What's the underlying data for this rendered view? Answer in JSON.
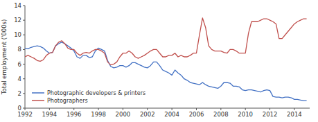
{
  "chart_data": {
    "type": "line",
    "ylabel": "Total employment ('000s)",
    "x": [
      1992.0,
      1992.25,
      1992.5,
      1992.75,
      1993.0,
      1993.25,
      1993.5,
      1993.75,
      1994.0,
      1994.25,
      1994.5,
      1994.75,
      1995.0,
      1995.25,
      1995.5,
      1995.75,
      1996.0,
      1996.25,
      1996.5,
      1996.75,
      1997.0,
      1997.25,
      1997.5,
      1997.75,
      1998.0,
      1998.25,
      1998.5,
      1998.75,
      1999.0,
      1999.25,
      1999.5,
      1999.75,
      2000.0,
      2000.25,
      2000.5,
      2000.75,
      2001.0,
      2001.25,
      2001.5,
      2001.75,
      2002.0,
      2002.25,
      2002.5,
      2002.75,
      2003.0,
      2003.25,
      2003.5,
      2003.75,
      2004.0,
      2004.25,
      2004.5,
      2004.75,
      2005.0,
      2005.25,
      2005.5,
      2005.75,
      2006.0,
      2006.25,
      2006.5,
      2006.75,
      2007.0,
      2007.25,
      2007.5,
      2007.75,
      2008.0,
      2008.25,
      2008.5,
      2008.75,
      2009.0,
      2009.25,
      2009.5,
      2009.75,
      2010.0,
      2010.25,
      2010.5,
      2010.75,
      2011.0,
      2011.25,
      2011.5,
      2011.75,
      2012.0,
      2012.25,
      2012.5,
      2012.75,
      2013.0,
      2013.25,
      2013.5,
      2013.75,
      2014.0,
      2014.25,
      2014.5,
      2014.75,
      2015.0
    ],
    "series": [
      {
        "name": "Photographic developers & printers",
        "color": "#4472C4",
        "values": [
          8.2,
          8.1,
          8.3,
          8.4,
          8.5,
          8.4,
          8.2,
          7.8,
          7.5,
          7.6,
          8.5,
          8.8,
          9.0,
          8.8,
          8.5,
          8.2,
          7.8,
          7.0,
          6.8,
          7.2,
          7.2,
          6.9,
          7.0,
          7.8,
          8.2,
          8.0,
          7.8,
          6.5,
          5.7,
          5.5,
          5.6,
          5.8,
          5.8,
          5.6,
          5.8,
          6.2,
          6.2,
          6.0,
          5.8,
          5.6,
          5.5,
          5.8,
          6.3,
          6.3,
          5.8,
          5.2,
          5.0,
          4.8,
          4.5,
          5.2,
          4.8,
          4.5,
          4.0,
          3.8,
          3.5,
          3.4,
          3.3,
          3.2,
          3.5,
          3.2,
          3.0,
          2.9,
          2.8,
          2.7,
          3.0,
          3.5,
          3.5,
          3.4,
          3.0,
          3.0,
          2.9,
          2.5,
          2.4,
          2.5,
          2.5,
          2.4,
          2.3,
          2.2,
          2.4,
          2.5,
          2.4,
          1.6,
          1.5,
          1.5,
          1.4,
          1.5,
          1.5,
          1.4,
          1.2,
          1.2,
          1.1,
          1.0,
          1.0
        ]
      },
      {
        "name": "Photographers",
        "color": "#C0504D",
        "values": [
          7.0,
          7.2,
          7.0,
          6.8,
          6.5,
          6.4,
          6.6,
          7.2,
          7.5,
          7.6,
          8.5,
          9.0,
          9.2,
          8.8,
          8.2,
          8.0,
          8.0,
          7.5,
          7.2,
          7.5,
          7.6,
          7.5,
          7.8,
          8.0,
          8.0,
          7.8,
          7.5,
          6.3,
          5.9,
          6.0,
          6.3,
          7.0,
          7.5,
          7.5,
          7.8,
          7.5,
          7.0,
          6.8,
          7.0,
          7.2,
          7.5,
          7.8,
          8.0,
          8.0,
          7.5,
          7.0,
          7.0,
          7.2,
          7.2,
          7.5,
          7.0,
          7.2,
          7.0,
          7.0,
          7.2,
          7.5,
          7.5,
          10.0,
          12.3,
          11.0,
          8.5,
          8.0,
          7.8,
          7.8,
          7.8,
          7.6,
          7.5,
          8.0,
          8.0,
          7.8,
          7.5,
          7.5,
          7.5,
          10.2,
          11.8,
          11.8,
          11.8,
          12.0,
          12.2,
          12.2,
          12.0,
          11.8,
          11.5,
          9.5,
          9.5,
          10.0,
          10.5,
          11.0,
          11.5,
          11.8,
          12.0,
          12.2,
          12.2
        ]
      }
    ],
    "xlim": [
      1992,
      2015.25
    ],
    "ylim": [
      0,
      14
    ],
    "xticks": [
      1992,
      1994,
      1996,
      1998,
      2000,
      2002,
      2004,
      2006,
      2008,
      2010,
      2012,
      2014
    ],
    "yticks": [
      0,
      2,
      4,
      6,
      8,
      10,
      12,
      14
    ],
    "grid": false,
    "legend": "lower left"
  }
}
